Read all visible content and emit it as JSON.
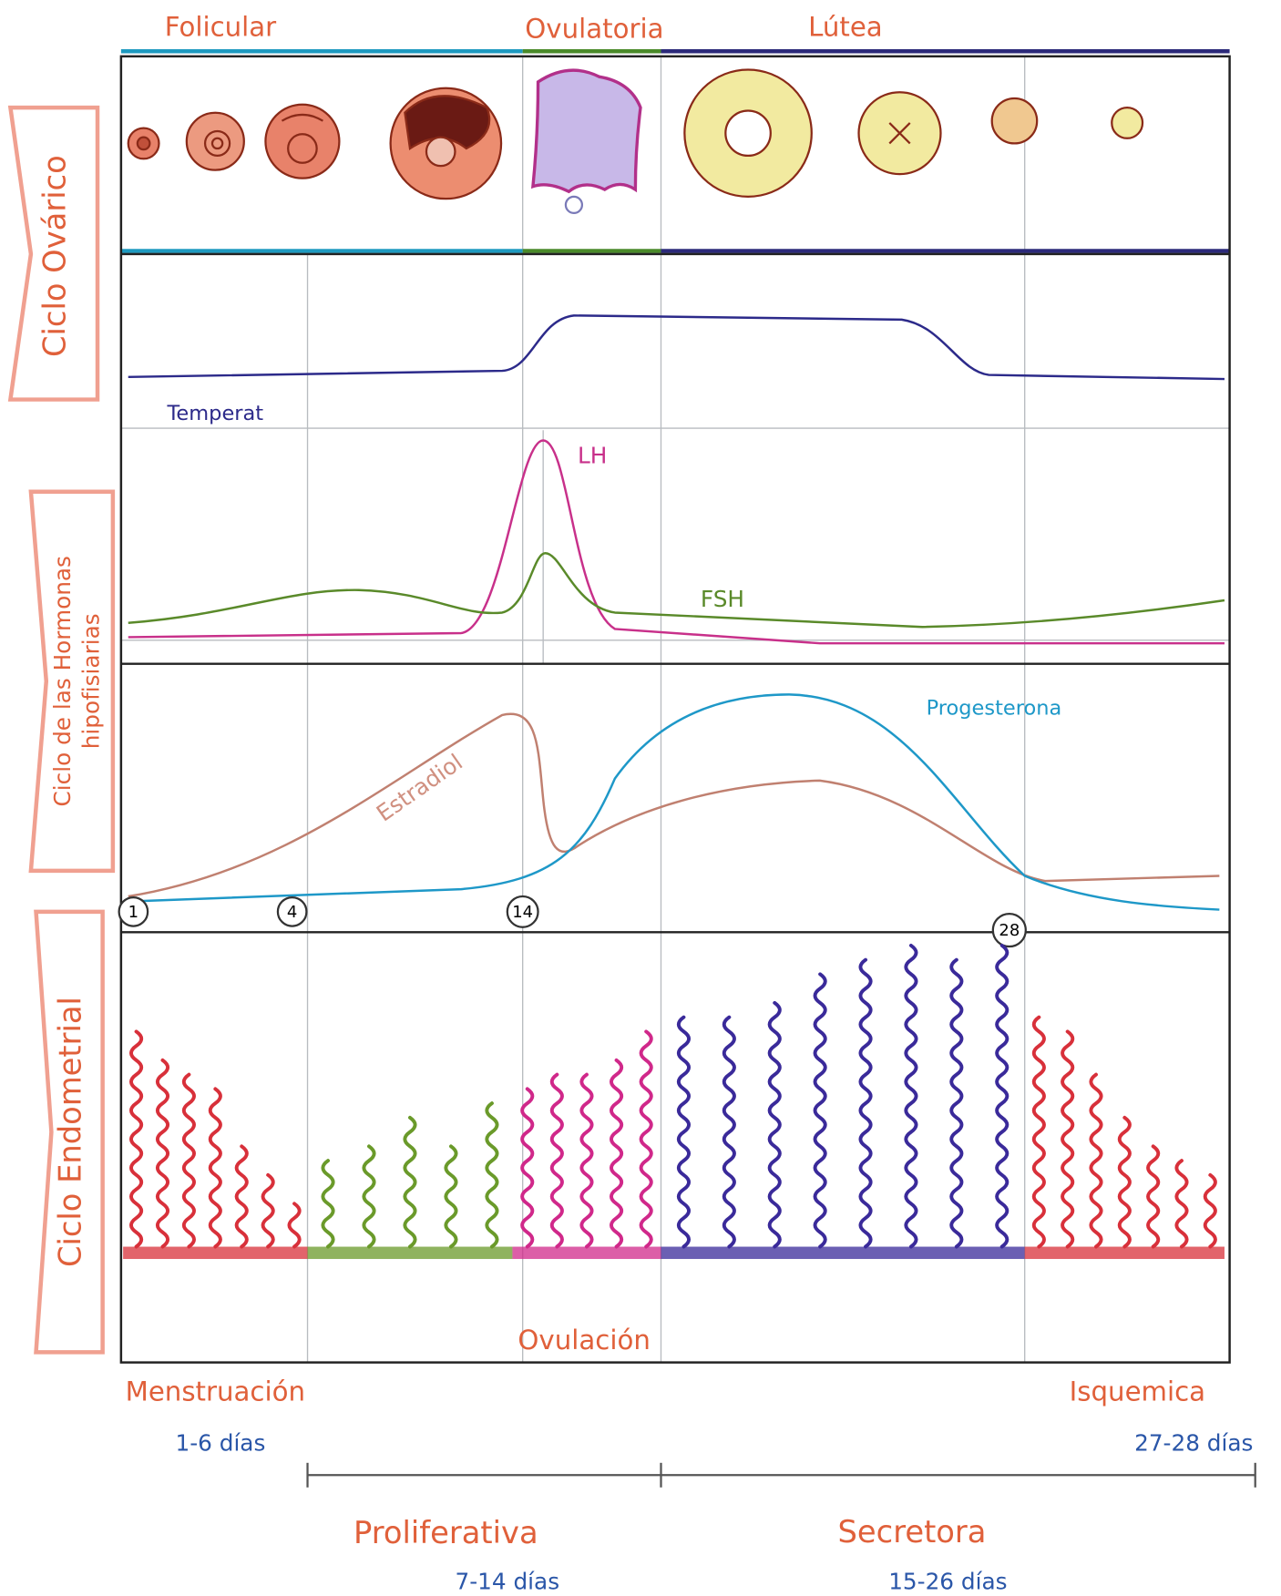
{
  "ovarian_phases": [
    "Folicular",
    "Ovulatoria",
    "Lútea"
  ],
  "sections": {
    "ovarian": "Ciclo Ovárico",
    "hormones": [
      "Ciclo de las Hormonas",
      "hipofisiarias"
    ],
    "endometrial": "Ciclo Endometrial"
  },
  "curves": {
    "temperature": "Temperat",
    "lh": "LH",
    "fsh": "FSH",
    "estradiol": "Estradiol",
    "progesterone": "Progesterona"
  },
  "days": [
    "1",
    "4",
    "14",
    "28"
  ],
  "ovulation": "Ovulación",
  "endometrial_phases": [
    {
      "name": "Menstruación",
      "days": "1-6 días"
    },
    {
      "name": "Proliferativa",
      "days": "7-14 días"
    },
    {
      "name": "Secretora",
      "days": "15-26 días"
    },
    {
      "name": "Isquemica",
      "days": "27-28 días"
    }
  ]
}
